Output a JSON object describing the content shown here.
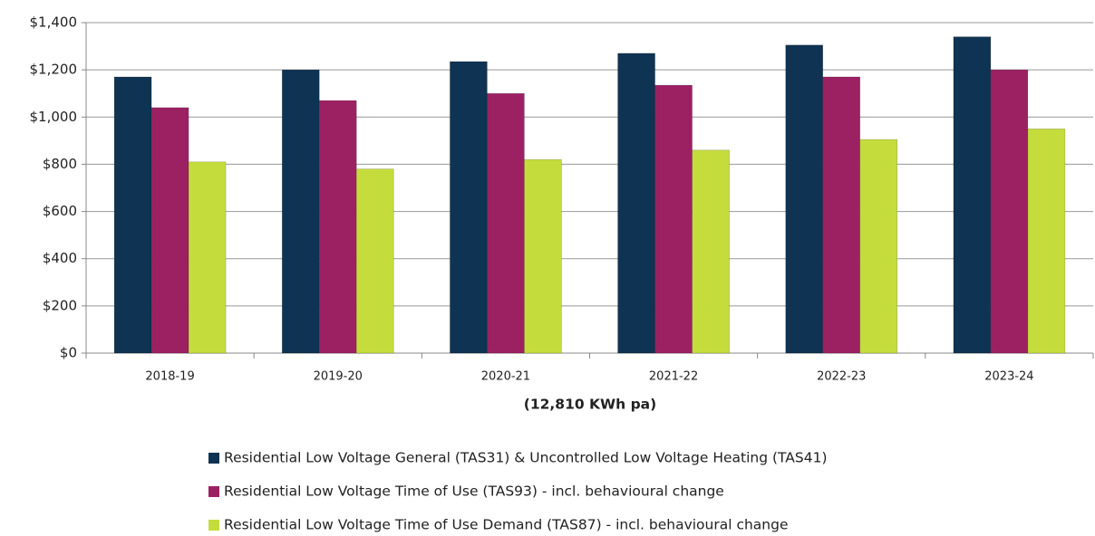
{
  "chart_data": {
    "type": "bar",
    "x_label": "(12,810 KWh pa)",
    "categories": [
      "2018-19",
      "2019-20",
      "2020-21",
      "2021-22",
      "2022-23",
      "2023-24"
    ],
    "series": [
      {
        "name": "Residential Low Voltage General (TAS31) & Uncontrolled Low Voltage Heating (TAS41)",
        "color": "#0f3352",
        "values": [
          1170,
          1200,
          1235,
          1270,
          1305,
          1340
        ]
      },
      {
        "name": "Residential Low Voltage Time of Use (TAS93) - incl. behavioural change",
        "color": "#9c2163",
        "values": [
          1040,
          1070,
          1100,
          1135,
          1170,
          1200
        ]
      },
      {
        "name": "Residential Low Voltage Time of Use Demand (TAS87) - incl. behavioural change",
        "color": "#c5dc3d",
        "values": [
          810,
          780,
          820,
          860,
          905,
          950
        ]
      }
    ],
    "ylim": [
      0,
      1400
    ],
    "yticks": [
      {
        "value": 0,
        "label": "$0"
      },
      {
        "value": 200,
        "label": "$200"
      },
      {
        "value": 400,
        "label": "$400"
      },
      {
        "value": 600,
        "label": "$600"
      },
      {
        "value": 800,
        "label": "$800"
      },
      {
        "value": 1000,
        "label": "$1,000"
      },
      {
        "value": 1200,
        "label": "$1,200"
      },
      {
        "value": 1400,
        "label": "$1,400"
      }
    ],
    "grid": true
  }
}
